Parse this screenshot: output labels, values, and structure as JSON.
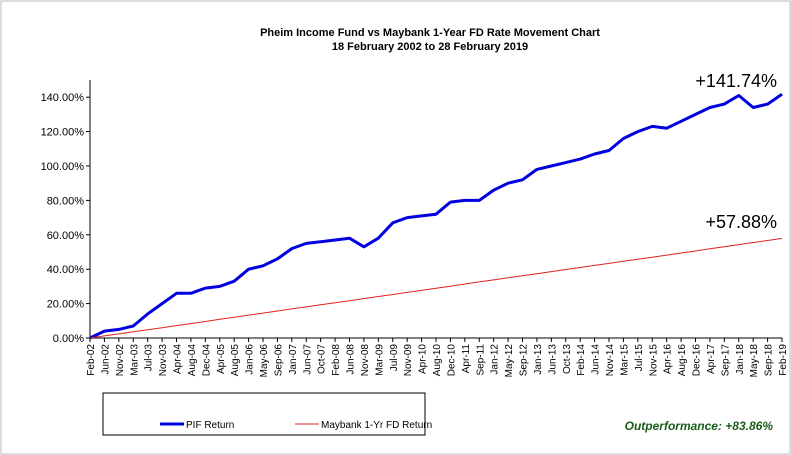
{
  "chart_data": {
    "type": "line",
    "title": "Pheim Income Fund vs Maybank 1-Year FD Rate Movement Chart",
    "subtitle": "18 February 2002 to 28 February 2019",
    "categories": [
      "Feb-02",
      "Jun-02",
      "Nov-02",
      "Mar-03",
      "Jul-03",
      "Nov-03",
      "Apr-04",
      "Aug-04",
      "Dec-04",
      "Apr-05",
      "Aug-05",
      "Jan-06",
      "May-06",
      "Sep-06",
      "Jan-07",
      "Jun-07",
      "Oct-07",
      "Feb-08",
      "Jun-08",
      "Nov-08",
      "Mar-09",
      "Jul-09",
      "Nov-09",
      "Apr-10",
      "Aug-10",
      "Dec-10",
      "Apr-11",
      "Sep-11",
      "Jan-12",
      "May-12",
      "Sep-12",
      "Jan-13",
      "Jun-13",
      "Oct-13",
      "Feb-14",
      "Jun-14",
      "Nov-14",
      "Mar-15",
      "Jul-15",
      "Nov-15",
      "Apr-16",
      "Aug-16",
      "Dec-16",
      "Apr-17",
      "Sep-17",
      "Jan-18",
      "May-18",
      "Sep-18",
      "Feb-19"
    ],
    "series": [
      {
        "name": "PIF Return",
        "color": "#0000e0",
        "width": 3,
        "values": [
          0,
          4,
          5,
          7,
          14,
          20,
          26,
          26,
          29,
          30,
          33,
          40,
          42,
          46,
          52,
          55,
          56,
          57,
          58,
          53,
          58,
          67,
          70,
          71,
          72,
          79,
          80,
          80,
          86,
          90,
          92,
          98,
          100,
          102,
          104,
          107,
          109,
          116,
          120,
          123,
          122,
          126,
          130,
          134,
          136,
          141,
          134,
          136,
          141.74
        ]
      },
      {
        "name": "Maybank 1-Yr FD Return",
        "color": "#e02020",
        "width": 1,
        "values": [
          0,
          1.2,
          2.4,
          3.6,
          4.8,
          6.0,
          7.2,
          8.4,
          9.6,
          10.9,
          12.1,
          13.3,
          14.5,
          15.7,
          16.9,
          18.1,
          19.3,
          20.5,
          21.7,
          22.9,
          24.1,
          25.3,
          26.5,
          27.7,
          28.9,
          30.1,
          31.4,
          32.6,
          33.8,
          35.0,
          36.2,
          37.4,
          38.6,
          39.8,
          41.0,
          42.2,
          43.4,
          44.6,
          45.8,
          47.0,
          48.2,
          49.4,
          50.6,
          51.9,
          53.1,
          54.3,
          55.5,
          56.7,
          57.88
        ]
      }
    ],
    "ylim": [
      0,
      150
    ],
    "yticks": [
      {
        "value": 0,
        "label": "0.00%"
      },
      {
        "value": 20,
        "label": "20.00%"
      },
      {
        "value": 40,
        "label": "40.00%"
      },
      {
        "value": 60,
        "label": "60.00%"
      },
      {
        "value": 80,
        "label": "80.00%"
      },
      {
        "value": 100,
        "label": "100.00%"
      },
      {
        "value": 120,
        "label": "120.00%"
      },
      {
        "value": 140,
        "label": "140.00%"
      }
    ],
    "annotations": [
      "+141.74%",
      "+57.88%",
      "Outperformance: +83.86%"
    ]
  }
}
